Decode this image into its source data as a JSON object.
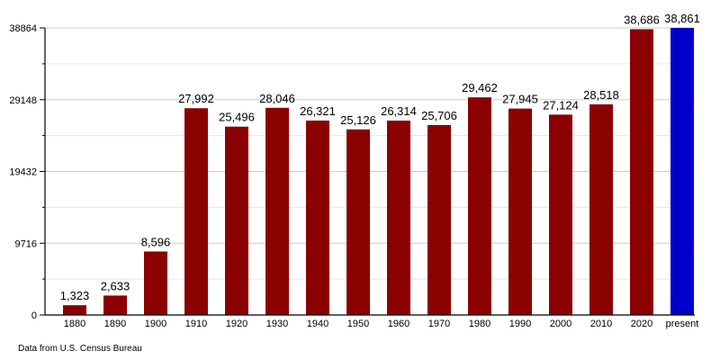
{
  "chart_data": {
    "type": "bar",
    "categories": [
      "1880",
      "1890",
      "1900",
      "1910",
      "1920",
      "1930",
      "1940",
      "1950",
      "1960",
      "1970",
      "1980",
      "1990",
      "2000",
      "2010",
      "2020",
      "present"
    ],
    "values": [
      1323,
      2633,
      8596,
      27992,
      25496,
      28046,
      26321,
      25126,
      26314,
      25706,
      29462,
      27945,
      27124,
      28518,
      38686,
      38861
    ],
    "data_labels": [
      "1,323",
      "2,633",
      "8,596",
      "27,992",
      "25,496",
      "28,046",
      "26,321",
      "25,126",
      "26,314",
      "25,706",
      "29,462",
      "27,945",
      "27,124",
      "28,518",
      "38,686",
      "38,861"
    ],
    "yticks": [
      0,
      9716,
      19432,
      29148,
      38864
    ],
    "ylim": [
      0,
      38864
    ],
    "grid": true,
    "bar_color": "#8b0000",
    "highlight_color": "#0000cd",
    "highlight_category": "present"
  },
  "source": "Data from U.S. Census Bureau"
}
